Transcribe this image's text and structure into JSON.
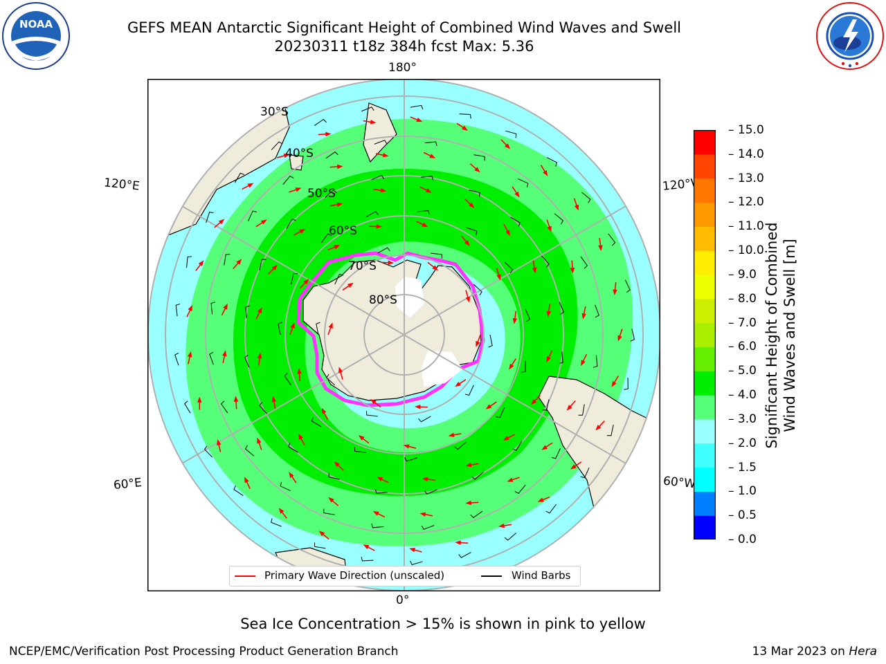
{
  "header": {
    "title_line1": "GEFS MEAN Antarctic Significant Height of Combined Wind Waves and Swell",
    "title_line2": "20230311 t18z 384h fcst   Max: 5.36"
  },
  "logos": {
    "noaa": {
      "text": "NOAA",
      "ring_text": "NATIONAL OCEANIC AND ATMOSPHERIC ADMINISTRATION · U.S. DEPARTMENT OF COMMERCE"
    },
    "nws": {
      "ring_text": "NATIONAL WEATHER SERVICE"
    }
  },
  "map": {
    "projection": "south polar stereographic",
    "longitude_labels": {
      "top": "180°",
      "bottom": "0°",
      "upper_left": "120°E",
      "upper_right": "120°W",
      "lower_left": "60°E",
      "lower_right": "60°W"
    },
    "latitude_labels": [
      "30°S",
      "40°S",
      "50°S",
      "60°S",
      "70°S",
      "80°S"
    ],
    "colors": {
      "land": "#efecdc",
      "ocean_low": "#99ffff",
      "ocean_mid": "#55ff77",
      "ocean_high": "#00ee00",
      "ice_edge": "#ff33ff",
      "grid": "#b0b0b0"
    }
  },
  "colorbar": {
    "label_line1": "Significant Height of Combined",
    "label_line2": "Wind Waves and Swell [m]",
    "ticks": [
      "15.0",
      "14.0",
      "13.0",
      "12.0",
      "11.0",
      "10.0",
      "9.0",
      "8.0",
      "7.0",
      "6.0",
      "5.0",
      "4.0",
      "3.0",
      "2.0",
      "1.5",
      "1.0",
      "0.5",
      "0.0"
    ],
    "colors_bottom_to_top": [
      "#0000ff",
      "#0080ff",
      "#00ffff",
      "#40ffff",
      "#99ffff",
      "#55ff77",
      "#00ee00",
      "#66ee00",
      "#aaee00",
      "#ccee00",
      "#eeff00",
      "#ffee00",
      "#ffbb00",
      "#ff9900",
      "#ff7700",
      "#ff4400",
      "#ff0000"
    ]
  },
  "legend": {
    "wave_label": "Primary Wave Direction (unscaled)",
    "wave_color": "#ff0000",
    "barb_label": "Wind Barbs",
    "barb_color": "#000000"
  },
  "footer": {
    "note": "Sea Ice Concentration > 15% is shown in pink to yellow",
    "credit": "NCEP/EMC/Verification Post Processing Product Generation Branch",
    "date_prefix": "13 Mar 2023 on",
    "machine": "Hera"
  }
}
